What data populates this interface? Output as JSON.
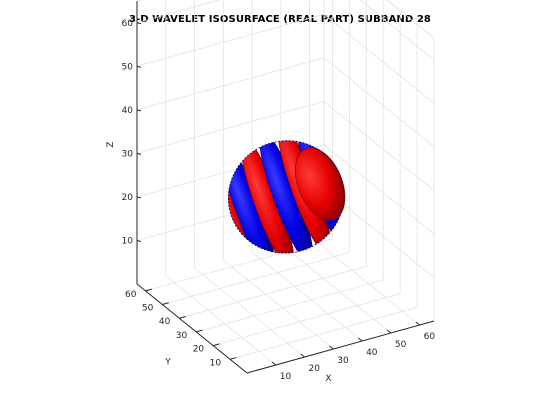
{
  "chart_data": {
    "type": "isosurface",
    "title": "3-D WAVELET ISOSURFACE (REAL PART) SUBBAND 28",
    "xlabel": "X",
    "ylabel": "Y",
    "zlabel": "Z",
    "xticks": [
      10,
      20,
      30,
      40,
      50,
      60
    ],
    "yticks": [
      10,
      20,
      30,
      40,
      50,
      60
    ],
    "zticks": [
      10,
      20,
      30,
      40,
      50,
      60
    ],
    "xlim": [
      0,
      65
    ],
    "ylim": [
      0,
      65
    ],
    "zlim": [
      0,
      65
    ],
    "grid": true,
    "view": "3-D perspective (azimuth ~ -37.5, elevation ~ 30)",
    "center": [
      33,
      33,
      24
    ],
    "radius": 14,
    "surfaces": [
      {
        "part": "positive",
        "color": "#e60000"
      },
      {
        "part": "negative",
        "color": "#0000e6"
      }
    ],
    "bands": [
      "red",
      "blue",
      "red",
      "blue",
      "red",
      "blue",
      "red"
    ]
  }
}
